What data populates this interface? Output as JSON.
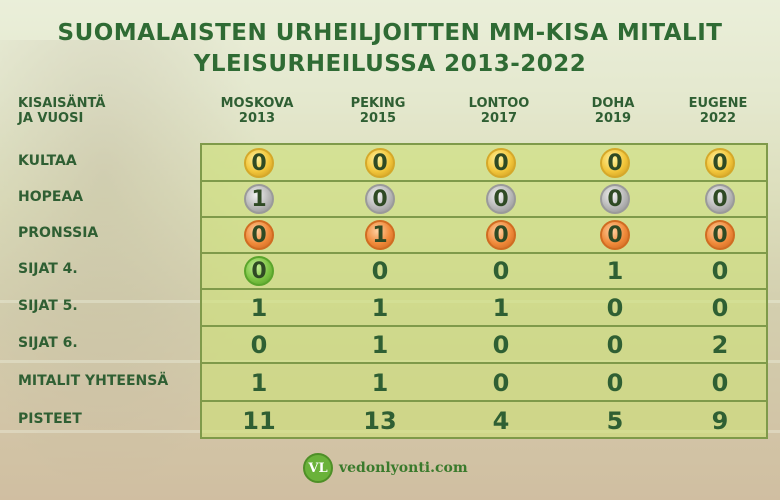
{
  "title_line1": "SUOMALAISTEN URHEILJOITTEN MM-KISA MITALIT",
  "title_line2": "YLEISURHEILUSSA 2013-2022",
  "header_label_line1": "KISAISÄNTÄ",
  "header_label_line2": "JA VUOSI",
  "logo_badge": "VL",
  "logo_text": "vedonlyonti.com",
  "colors": {
    "title": "#2f6b34",
    "grid": "#7f9a4a",
    "gold": "#f2c53a",
    "silver": "#b8b8b8",
    "bronze": "#f08a3a",
    "highlight_green": "#7cc443"
  },
  "chart_data": {
    "type": "table",
    "columns": [
      {
        "city": "MOSKOVA",
        "year": "2013"
      },
      {
        "city": "PEKING",
        "year": "2015"
      },
      {
        "city": "LONTOO",
        "year": "2017"
      },
      {
        "city": "DOHA",
        "year": "2019"
      },
      {
        "city": "EUGENE",
        "year": "2022"
      }
    ],
    "rows": [
      {
        "label": "KULTAA",
        "values": [
          "0",
          "0",
          "0",
          "0",
          "0"
        ],
        "coin": "gold"
      },
      {
        "label": "HOPEAA",
        "values": [
          "1",
          "0",
          "0",
          "0",
          "0"
        ],
        "coin": "silver"
      },
      {
        "label": "PRONSSIA",
        "values": [
          "0",
          "1",
          "0",
          "0",
          "0"
        ],
        "coin": "bronze"
      },
      {
        "label": "SIJAT 4.",
        "values": [
          "0",
          "0",
          "0",
          "1",
          "0"
        ],
        "coin": [
          "green",
          "",
          "",
          "",
          ""
        ]
      },
      {
        "label": "SIJAT 5.",
        "values": [
          "1",
          "1",
          "1",
          "0",
          "0"
        ]
      },
      {
        "label": "SIJAT 6.",
        "values": [
          "0",
          "1",
          "0",
          "0",
          "2"
        ]
      },
      {
        "label": "MITALIT YHTEENSÄ",
        "values": [
          "1",
          "1",
          "0",
          "0",
          "0"
        ]
      },
      {
        "label": "PISTEET",
        "values": [
          "11",
          "13",
          "4",
          "5",
          "9"
        ]
      }
    ]
  }
}
